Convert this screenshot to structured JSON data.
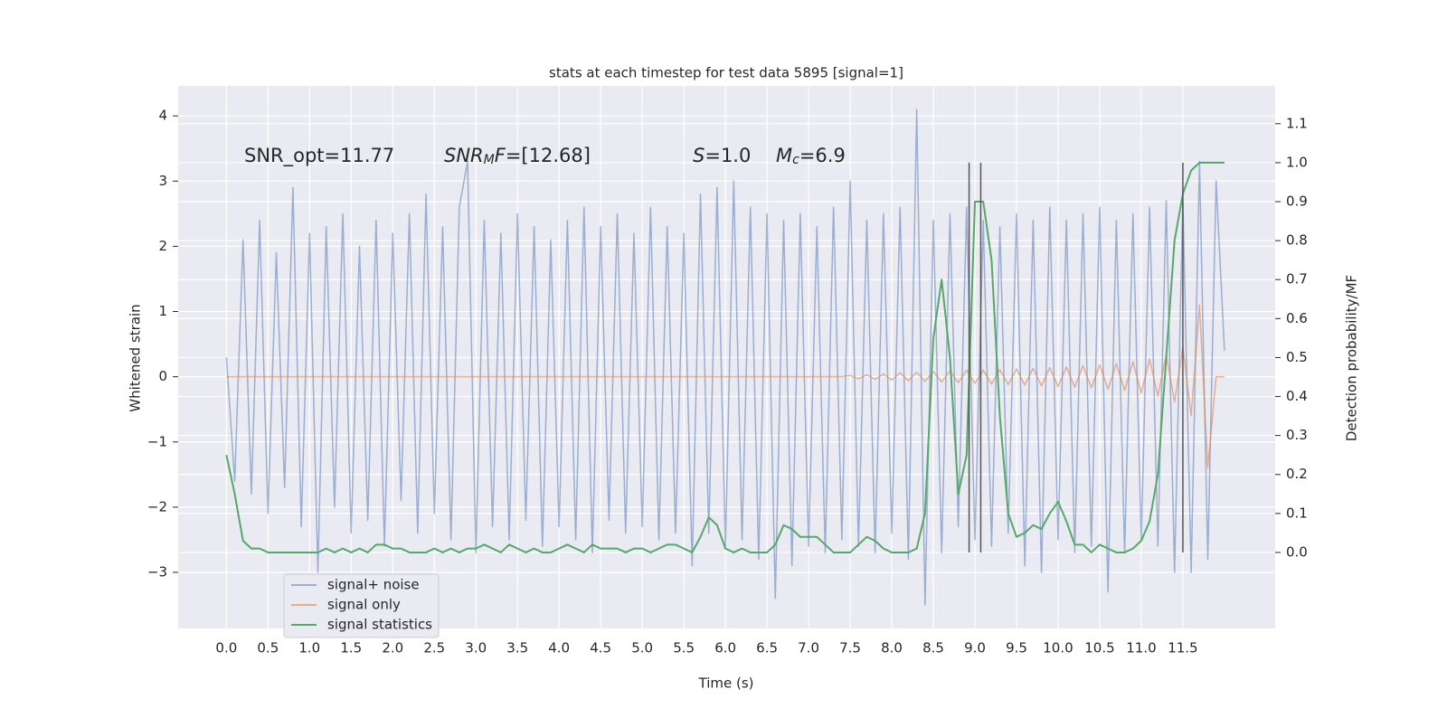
{
  "chart_data": {
    "type": "line",
    "title": "stats at each timestep for test data 5895 [signal=1]",
    "xlabel": "Time (s)",
    "ylabel": "Whitened strain",
    "y2label": "Detection probability/MF",
    "annotations": [
      [
        {
          "text": "SNR_opt=11.77",
          "style": "normal"
        }
      ],
      [
        {
          "text": "SNR",
          "style": "italic"
        },
        {
          "text": "M",
          "style": "sub"
        },
        {
          "text": "F",
          "style": "italic"
        },
        {
          "text": "=[12.68]",
          "style": "normal"
        }
      ],
      [
        {
          "text": "S",
          "style": "italic"
        },
        {
          "text": "=1.0",
          "style": "normal"
        }
      ],
      [
        {
          "text": "M",
          "style": "italic"
        },
        {
          "text": "c",
          "style": "sub"
        },
        {
          "text": "=6.9",
          "style": "normal"
        }
      ]
    ],
    "x": [
      0,
      0.1,
      0.2,
      0.3,
      0.4,
      0.5,
      0.6,
      0.7,
      0.8,
      0.9,
      1.0,
      1.1,
      1.2,
      1.3,
      1.4,
      1.5,
      1.6,
      1.7,
      1.8,
      1.9,
      2.0,
      2.1,
      2.2,
      2.3,
      2.4,
      2.5,
      2.6,
      2.7,
      2.8,
      2.9,
      3.0,
      3.1,
      3.2,
      3.3,
      3.4,
      3.5,
      3.6,
      3.7,
      3.8,
      3.9,
      4.0,
      4.1,
      4.2,
      4.3,
      4.4,
      4.5,
      4.6,
      4.7,
      4.8,
      4.9,
      5.0,
      5.1,
      5.2,
      5.3,
      5.4,
      5.5,
      5.6,
      5.7,
      5.8,
      5.9,
      6.0,
      6.1,
      6.2,
      6.3,
      6.4,
      6.5,
      6.6,
      6.7,
      6.8,
      6.9,
      7.0,
      7.1,
      7.2,
      7.3,
      7.4,
      7.5,
      7.6,
      7.7,
      7.8,
      7.9,
      8.0,
      8.1,
      8.2,
      8.3,
      8.4,
      8.5,
      8.6,
      8.7,
      8.8,
      8.9,
      9.0,
      9.1,
      9.2,
      9.3,
      9.4,
      9.5,
      9.6,
      9.7,
      9.8,
      9.9,
      10.0,
      10.1,
      10.2,
      10.3,
      10.4,
      10.5,
      10.6,
      10.7,
      10.8,
      10.9,
      11.0,
      11.1,
      11.2,
      11.3,
      11.4,
      11.5,
      11.6,
      11.7,
      11.8,
      11.9,
      12.0
    ],
    "series": [
      {
        "name": "signal+ noise",
        "color": "#4c72b0",
        "opacity": 0.5,
        "axis": "y",
        "values": [
          0.3,
          -1.6,
          2.1,
          -1.8,
          2.4,
          -2.1,
          1.9,
          -1.7,
          2.9,
          -2.3,
          2.2,
          -3.0,
          2.3,
          -2.0,
          2.5,
          -2.4,
          2.0,
          -2.2,
          2.4,
          -2.6,
          2.2,
          -1.9,
          2.5,
          -2.4,
          2.8,
          -2.1,
          2.3,
          -2.5,
          2.6,
          3.3,
          -2.7,
          2.4,
          -2.3,
          2.2,
          -2.5,
          2.5,
          -2.2,
          2.3,
          -2.6,
          2.1,
          -2.3,
          2.4,
          -2.5,
          2.6,
          -2.7,
          2.3,
          -2.2,
          2.5,
          -2.4,
          2.2,
          -2.3,
          2.6,
          -2.5,
          2.3,
          -2.4,
          2.2,
          -2.9,
          2.8,
          -2.4,
          2.9,
          -2.6,
          3.0,
          -2.5,
          2.6,
          -2.8,
          2.5,
          -3.4,
          2.4,
          -2.9,
          2.5,
          -2.6,
          2.3,
          -2.7,
          2.6,
          -2.5,
          3.0,
          -2.6,
          2.4,
          -2.7,
          2.5,
          -2.4,
          2.6,
          -2.8,
          4.1,
          -3.5,
          2.4,
          -2.7,
          2.5,
          -2.3,
          2.6,
          -2.5,
          2.4,
          -2.6,
          2.3,
          -2.4,
          2.5,
          -2.9,
          2.4,
          -3.0,
          2.6,
          -2.5,
          2.4,
          -2.7,
          2.5,
          -2.6,
          2.6,
          -3.3,
          2.4,
          -2.7,
          2.5,
          -2.5,
          2.6,
          -2.6,
          2.7,
          -3.0,
          2.7,
          -3.0,
          3.3,
          -2.8,
          3.0,
          0.4
        ]
      },
      {
        "name": "signal only",
        "color": "#dd8452",
        "opacity": 0.6,
        "axis": "y",
        "values": [
          0,
          0,
          0,
          0,
          0,
          0,
          0,
          0,
          0,
          0,
          0,
          0,
          0,
          0,
          0,
          0,
          0,
          0,
          0,
          0,
          0,
          0,
          0,
          0,
          0,
          0,
          0,
          0,
          0,
          0,
          0,
          0,
          0,
          0,
          0,
          0,
          0,
          0,
          0,
          0,
          0,
          0,
          0,
          0,
          0,
          0,
          0,
          0,
          0,
          0,
          0,
          0,
          0,
          0,
          0,
          0,
          0,
          0,
          0,
          0,
          0,
          0,
          0,
          0,
          0,
          0,
          0,
          0,
          0,
          0,
          0,
          0,
          0,
          0,
          0,
          0.02,
          -0.03,
          0.03,
          -0.04,
          0.04,
          -0.05,
          0.06,
          -0.06,
          0.07,
          -0.07,
          0.08,
          -0.08,
          0.09,
          -0.09,
          0.1,
          -0.1,
          0.1,
          -0.11,
          0.11,
          -0.12,
          0.12,
          -0.13,
          0.13,
          -0.14,
          0.14,
          -0.15,
          0.15,
          -0.16,
          0.17,
          -0.17,
          0.18,
          -0.19,
          0.2,
          -0.21,
          0.23,
          -0.25,
          0.27,
          -0.3,
          0.34,
          -0.39,
          0.46,
          -0.6,
          1.1,
          -1.4,
          0,
          0
        ]
      },
      {
        "name": "signal statistics",
        "color": "#55a868",
        "opacity": 1,
        "axis": "y2",
        "values": [
          0.25,
          0.15,
          0.03,
          0.01,
          0.01,
          0.0,
          0.0,
          0.0,
          0.0,
          0.0,
          0.0,
          0.0,
          0.01,
          0.0,
          0.01,
          0.0,
          0.01,
          0.0,
          0.02,
          0.02,
          0.01,
          0.01,
          0.0,
          0.0,
          0.0,
          0.01,
          0.0,
          0.01,
          0.0,
          0.01,
          0.01,
          0.02,
          0.01,
          0.0,
          0.02,
          0.01,
          0.0,
          0.01,
          0.0,
          0.0,
          0.01,
          0.02,
          0.01,
          0.0,
          0.02,
          0.01,
          0.01,
          0.01,
          0.0,
          0.01,
          0.01,
          0.0,
          0.01,
          0.02,
          0.02,
          0.01,
          0.0,
          0.04,
          0.09,
          0.07,
          0.01,
          0.0,
          0.01,
          0.0,
          0.0,
          0.0,
          0.02,
          0.07,
          0.06,
          0.04,
          0.04,
          0.04,
          0.02,
          0.0,
          0.0,
          0.0,
          0.02,
          0.04,
          0.03,
          0.01,
          0.0,
          0.0,
          0.0,
          0.01,
          0.1,
          0.55,
          0.7,
          0.5,
          0.15,
          0.25,
          0.9,
          0.9,
          0.75,
          0.35,
          0.1,
          0.04,
          0.05,
          0.07,
          0.06,
          0.1,
          0.13,
          0.08,
          0.02,
          0.02,
          0.0,
          0.02,
          0.01,
          0.0,
          0.0,
          0.01,
          0.03,
          0.08,
          0.2,
          0.5,
          0.8,
          0.92,
          0.98,
          1.0,
          1.0,
          1.0,
          1.0
        ]
      }
    ],
    "vlines": {
      "x": [
        8.93,
        9.07,
        11.5
      ],
      "y2": [
        0.0,
        1.0
      ],
      "color": "#555555"
    },
    "xlim": [
      -0.58,
      12.61
    ],
    "ylim": [
      -3.86,
      4.46
    ],
    "y2lim": [
      -0.195,
      1.197
    ],
    "xticks": [
      {
        "value": 0,
        "label": "0.0"
      },
      0.5,
      {
        "value": 1,
        "label": "1.0"
      },
      1.5,
      {
        "value": 2,
        "label": "2.0"
      },
      2.5,
      {
        "value": 3,
        "label": "3.0"
      },
      3.5,
      {
        "value": 4,
        "label": "4.0"
      },
      4.5,
      {
        "value": 5,
        "label": "5.0"
      },
      5.5,
      {
        "value": 6,
        "label": "6.0"
      },
      6.5,
      {
        "value": 7,
        "label": "7.0"
      },
      7.5,
      {
        "value": 8,
        "label": "8.0"
      },
      8.5,
      {
        "value": 9,
        "label": "9.0"
      },
      9.5,
      {
        "value": 10,
        "label": "10.0"
      },
      10.5,
      {
        "value": 11,
        "label": "11.0"
      },
      11.5
    ],
    "yticks": [
      {
        "value": -3,
        "label": "−3"
      },
      {
        "value": -2,
        "label": "−2"
      },
      {
        "value": -1,
        "label": "−1"
      },
      0,
      1,
      2,
      3,
      4
    ],
    "y2ticks": [
      {
        "value": 0,
        "label": "0.0"
      },
      0.1,
      0.2,
      0.3,
      0.4,
      0.5,
      0.6,
      0.7,
      0.8,
      0.9,
      {
        "value": 1,
        "label": "1.0"
      },
      1.1
    ],
    "grid": true,
    "legend": "lower left",
    "background": "#eaeaf2"
  }
}
